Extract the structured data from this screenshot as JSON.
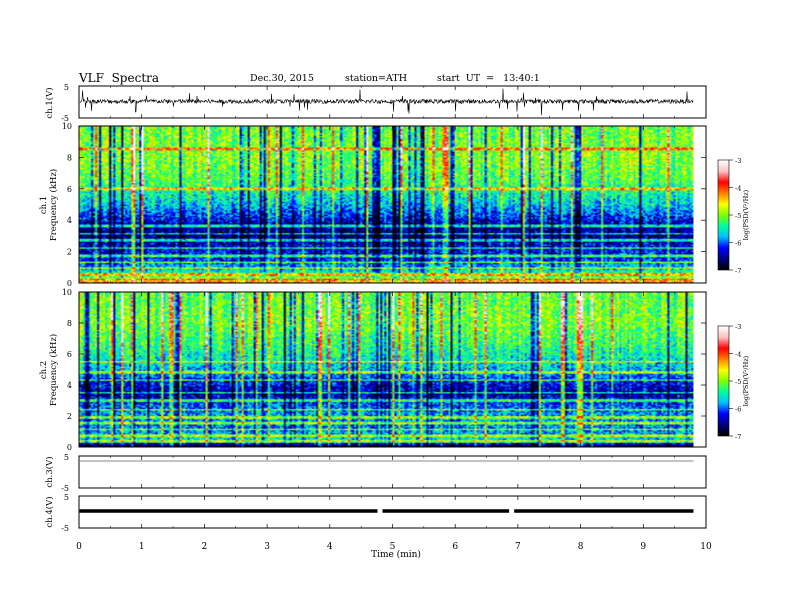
{
  "header": {
    "title": "VLF  Spectra",
    "date": "Dec.30, 2015",
    "station": "station=ATH",
    "start": "start  UT  =   13:40:1"
  },
  "colors": {
    "spectrogram_scale": [
      "#000000",
      "#000080",
      "#0000ff",
      "#00c0ff",
      "#00ffa0",
      "#80ff00",
      "#ffff00",
      "#ff8000",
      "#ff0000",
      "#ffc0c0",
      "#ffffff"
    ],
    "trace": "#000000"
  },
  "chart_data": [
    {
      "type": "line",
      "name": "ch1-waveform",
      "ylabel": "ch.1(V)",
      "ylim": [
        -5,
        5
      ],
      "y_ticks": [
        "5",
        "-5"
      ],
      "xlim": [
        0,
        10
      ],
      "x_end": 9.8,
      "baseline": 0.2,
      "noise_amplitude": 1.3,
      "note": "densely sampled noisy waveform with frequent spikes"
    },
    {
      "type": "heatmap",
      "name": "ch1-spectrogram",
      "ylabel": "ch.1\nFrequency  (kHz)",
      "ylim": [
        0,
        10
      ],
      "y_ticks": [
        "0",
        "2",
        "4",
        "6",
        "8",
        "10"
      ],
      "xlim": [
        0,
        10
      ],
      "x_end": 9.8,
      "colorbar_label": "log(PSD(V²/Hz)",
      "colorbar_ticks": [
        "-3",
        "-4",
        "-5",
        "-6",
        "-7"
      ],
      "colorbar_range": [
        -7,
        -3
      ],
      "level_profile": [
        {
          "f": 0.0,
          "level": -4.2
        },
        {
          "f": 0.3,
          "level": -5.0
        },
        {
          "f": 0.8,
          "level": -5.6
        },
        {
          "f": 1.5,
          "level": -6.2
        },
        {
          "f": 2.2,
          "level": -6.3
        },
        {
          "f": 3.0,
          "level": -6.6
        },
        {
          "f": 3.8,
          "level": -6.4
        },
        {
          "f": 5.0,
          "level": -5.7
        },
        {
          "f": 6.5,
          "level": -5.2
        },
        {
          "f": 8.0,
          "level": -5.0
        },
        {
          "f": 10.0,
          "level": -5.1
        }
      ],
      "tone_lines_khz": [
        0.2,
        0.5,
        0.9,
        1.3,
        1.7,
        2.2,
        2.7,
        3.1,
        3.6,
        6.0,
        8.6
      ]
    },
    {
      "type": "heatmap",
      "name": "ch2-spectrogram",
      "ylabel": "ch.2\nFrequency  (kHz)",
      "ylim": [
        0,
        10
      ],
      "y_ticks": [
        "0",
        "2",
        "4",
        "6",
        "8",
        "10"
      ],
      "xlim": [
        0,
        10
      ],
      "x_end": 9.8,
      "colorbar_label": "log(PSD(V²/Hz)",
      "colorbar_ticks": [
        "-3",
        "-4",
        "-5",
        "-6",
        "-7"
      ],
      "colorbar_range": [
        -7,
        -3
      ],
      "level_profile": [
        {
          "f": 0.0,
          "level": -6.9
        },
        {
          "f": 0.4,
          "level": -5.6
        },
        {
          "f": 1.2,
          "level": -5.9
        },
        {
          "f": 2.0,
          "level": -5.8
        },
        {
          "f": 2.8,
          "level": -6.1
        },
        {
          "f": 3.4,
          "level": -6.5
        },
        {
          "f": 4.2,
          "level": -6.2
        },
        {
          "f": 5.0,
          "level": -5.7
        },
        {
          "f": 6.5,
          "level": -5.3
        },
        {
          "f": 8.0,
          "level": -5.0
        },
        {
          "f": 10.0,
          "level": -5.1
        }
      ],
      "tone_lines_khz": [
        0.3,
        0.7,
        1.1,
        1.5,
        1.9,
        2.4,
        3.0,
        3.5,
        4.3,
        4.8,
        5.5
      ]
    },
    {
      "type": "line",
      "name": "ch3-waveform",
      "ylabel": "ch.3(V)",
      "ylim": [
        -5,
        5
      ],
      "y_ticks": [
        "5",
        "-5"
      ],
      "xlim": [
        0,
        10
      ],
      "x_end": 9.8,
      "baseline": 4.7,
      "note": "flat trace near top of panel"
    },
    {
      "type": "line",
      "name": "ch4-waveform",
      "ylabel": "ch.4(V)",
      "ylim": [
        -5,
        5
      ],
      "y_ticks": [
        "5",
        "-5"
      ],
      "xlim": [
        0,
        10
      ],
      "x_end": 9.8,
      "baseline": 0.0,
      "gaps_min": [
        4.8,
        6.9
      ],
      "note": "thick flat trace with two short dropouts"
    }
  ],
  "x_axis": {
    "label": "Time  (min)",
    "ticks": [
      "0",
      "1",
      "2",
      "3",
      "4",
      "5",
      "6",
      "7",
      "8",
      "9",
      "10"
    ],
    "range": [
      0,
      10
    ]
  }
}
